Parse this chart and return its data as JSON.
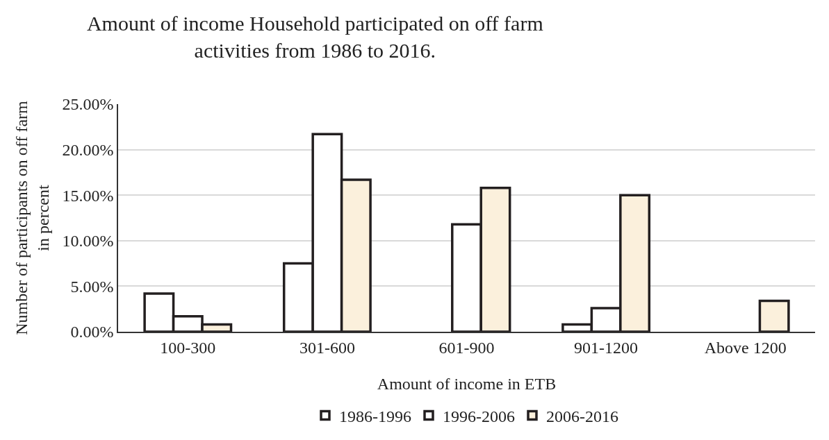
{
  "chart_data": {
    "type": "bar",
    "title": "Amount of income Household participated on off farm activities from 1986 to 2016.",
    "xlabel": "Amount of income in ETB",
    "ylabel": "Number of participants on off farm in percent",
    "categories": [
      "100-300",
      "301-600",
      "601-900",
      "901-1200",
      "Above 1200"
    ],
    "series": [
      {
        "name": "1986-1996",
        "color": "#ffffff",
        "values": [
          4.2,
          7.5,
          null,
          0.8,
          null
        ]
      },
      {
        "name": "1996-2006",
        "color": "#ffffff",
        "values": [
          1.7,
          21.7,
          11.8,
          2.6,
          null
        ]
      },
      {
        "name": "2006-2016",
        "color": "#fbf0dc",
        "values": [
          0.8,
          16.7,
          15.8,
          15.0,
          3.4
        ]
      }
    ],
    "ylim": [
      0,
      25
    ],
    "yticks": [
      {
        "value": 0,
        "label": "0.00%"
      },
      {
        "value": 5,
        "label": "5.00%"
      },
      {
        "value": 10,
        "label": "10.00%"
      },
      {
        "value": 15,
        "label": "15.00%"
      },
      {
        "value": 20,
        "label": "20.00%"
      },
      {
        "value": 25,
        "label": "25.00%"
      }
    ],
    "grid": "y",
    "legend": "bottom"
  }
}
